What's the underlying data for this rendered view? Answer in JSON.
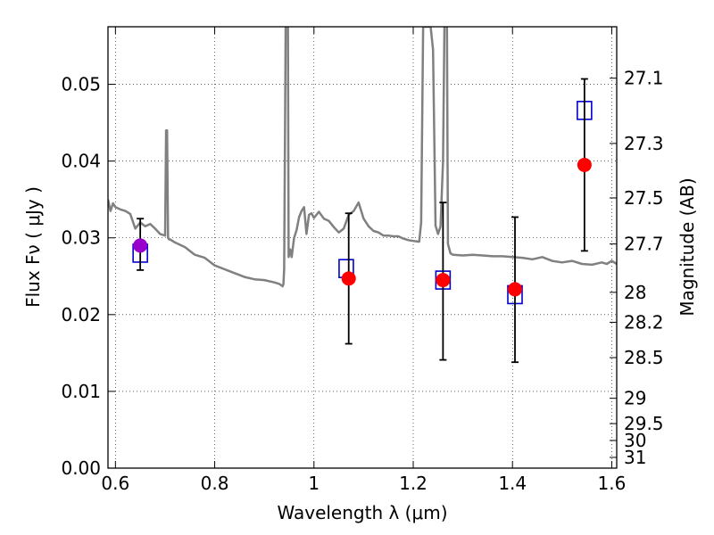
{
  "chart_data": {
    "type": "scatter",
    "xlabel": "Wavelength  λ (μm)",
    "ylabel": "Flux  Fν  ( μJy )",
    "ylabel_right": "Magnitude (AB)",
    "xlim": [
      0.585,
      1.61
    ],
    "ylim": [
      0.0,
      0.0575
    ],
    "x_ticks": [
      0.6,
      0.8,
      1.0,
      1.2,
      1.4,
      1.6
    ],
    "x_tick_labels": [
      "0.6",
      "0.8",
      "1",
      "1.2",
      "1.4",
      "1.6"
    ],
    "y_ticks": [
      0.0,
      0.01,
      0.02,
      0.03,
      0.04,
      0.05
    ],
    "y_tick_labels": [
      "0.00",
      "0.01",
      "0.02",
      "0.03",
      "0.04",
      "0.05"
    ],
    "right_ticks": [
      {
        "label": "27.1",
        "flux": 0.0508
      },
      {
        "label": "27.3",
        "flux": 0.0423
      },
      {
        "label": "27.5",
        "flux": 0.0352
      },
      {
        "label": "27.7",
        "flux": 0.0292
      },
      {
        "label": "28",
        "flux": 0.0229
      },
      {
        "label": "28.2",
        "flux": 0.019
      },
      {
        "label": "28.5",
        "flux": 0.0144
      },
      {
        "label": "29",
        "flux": 0.0091
      },
      {
        "label": "29.5",
        "flux": 0.0058
      },
      {
        "label": "30",
        "flux": 0.0036
      },
      {
        "label": "31",
        "flux": 0.0014
      }
    ],
    "grid": true,
    "colors": {
      "model": "#808080",
      "model_photometry": "#0000cc",
      "observed": "#ff0000",
      "observed_first": "#9900cc",
      "errorbar": "#000000"
    },
    "model_spectrum": {
      "x": [
        0.585,
        0.59,
        0.595,
        0.6,
        0.61,
        0.62,
        0.63,
        0.64,
        0.65,
        0.66,
        0.67,
        0.68,
        0.69,
        0.7,
        0.702,
        0.704,
        0.706,
        0.708,
        0.71,
        0.72,
        0.74,
        0.76,
        0.78,
        0.8,
        0.82,
        0.84,
        0.86,
        0.88,
        0.9,
        0.92,
        0.93,
        0.937,
        0.9385,
        0.94,
        0.943,
        0.946,
        0.9475,
        0.949,
        0.952,
        0.955,
        0.96,
        0.965,
        0.97,
        0.975,
        0.98,
        0.985,
        0.99,
        0.995,
        1.0,
        1.01,
        1.02,
        1.03,
        1.04,
        1.05,
        1.06,
        1.07,
        1.08,
        1.09,
        1.1,
        1.11,
        1.12,
        1.13,
        1.14,
        1.15,
        1.16,
        1.17,
        1.18,
        1.19,
        1.2,
        1.21,
        1.212,
        1.216,
        1.22,
        1.225,
        1.23,
        1.235,
        1.24,
        1.245,
        1.25,
        1.255,
        1.26,
        1.263,
        1.265,
        1.268,
        1.27,
        1.275,
        1.28,
        1.3,
        1.32,
        1.34,
        1.36,
        1.38,
        1.4,
        1.42,
        1.44,
        1.46,
        1.48,
        1.5,
        1.52,
        1.54,
        1.56,
        1.58,
        1.59,
        1.6,
        1.61
      ],
      "y": [
        0.035,
        0.0335,
        0.0345,
        0.034,
        0.0337,
        0.0335,
        0.0331,
        0.0312,
        0.032,
        0.0315,
        0.0318,
        0.0312,
        0.0305,
        0.0303,
        0.044,
        0.044,
        0.03,
        0.0298,
        0.0298,
        0.0294,
        0.0288,
        0.0278,
        0.0274,
        0.0264,
        0.0259,
        0.0254,
        0.0249,
        0.0246,
        0.0245,
        0.0242,
        0.024,
        0.0237,
        0.024,
        0.026,
        0.058,
        0.058,
        0.058,
        0.0275,
        0.0285,
        0.0275,
        0.03,
        0.031,
        0.0327,
        0.0335,
        0.034,
        0.0305,
        0.033,
        0.0332,
        0.0326,
        0.0334,
        0.0325,
        0.0322,
        0.0314,
        0.0307,
        0.0312,
        0.033,
        0.0335,
        0.0346,
        0.0325,
        0.0315,
        0.0309,
        0.0307,
        0.0303,
        0.0303,
        0.0302,
        0.0302,
        0.0299,
        0.0297,
        0.0296,
        0.0295,
        0.0295,
        0.032,
        0.0575,
        0.0575,
        0.0575,
        0.0575,
        0.0545,
        0.0316,
        0.0305,
        0.0315,
        0.04,
        0.058,
        0.058,
        0.0575,
        0.0292,
        0.028,
        0.0278,
        0.0277,
        0.0278,
        0.0277,
        0.0276,
        0.0276,
        0.0275,
        0.0274,
        0.0272,
        0.0275,
        0.027,
        0.0268,
        0.027,
        0.0266,
        0.0265,
        0.0268,
        0.0266,
        0.027,
        0.0266
      ]
    },
    "model_photometry": [
      {
        "x": 0.65,
        "y": 0.028
      },
      {
        "x": 1.065,
        "y": 0.026
      },
      {
        "x": 1.26,
        "y": 0.0245
      },
      {
        "x": 1.405,
        "y": 0.0226
      },
      {
        "x": 1.545,
        "y": 0.0466
      }
    ],
    "observed": [
      {
        "x": 0.65,
        "y": 0.029,
        "ylow": 0.0258,
        "yhigh": 0.0325
      },
      {
        "x": 1.07,
        "y": 0.0247,
        "ylow": 0.0162,
        "yhigh": 0.0332
      },
      {
        "x": 1.26,
        "y": 0.0245,
        "ylow": 0.0141,
        "yhigh": 0.0346
      },
      {
        "x": 1.405,
        "y": 0.0233,
        "ylow": 0.0138,
        "yhigh": 0.0327
      },
      {
        "x": 1.545,
        "y": 0.0395,
        "ylow": 0.0283,
        "yhigh": 0.0507
      }
    ]
  }
}
